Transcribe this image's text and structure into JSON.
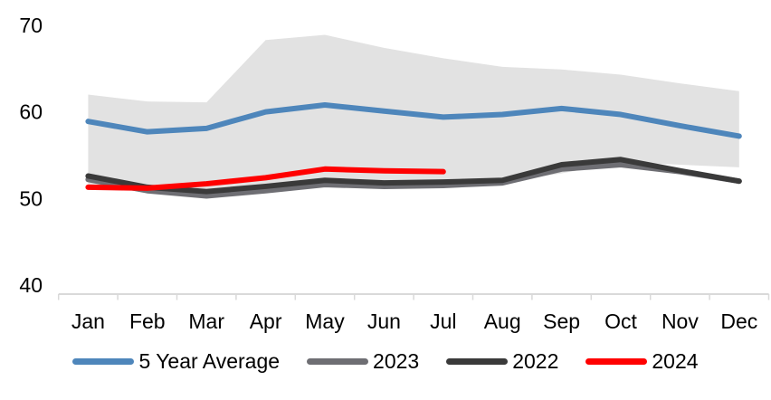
{
  "chart_data": {
    "type": "line",
    "title": "",
    "categories": [
      "Jan",
      "Feb",
      "Mar",
      "Apr",
      "May",
      "Jun",
      "Jul",
      "Aug",
      "Sep",
      "Oct",
      "Nov",
      "Dec"
    ],
    "y_ticks": [
      40,
      50,
      60,
      70
    ],
    "ylim": [
      40,
      70
    ],
    "grid": false,
    "legend_position": "bottom",
    "axis_color": "#D9D9D9",
    "text_color": "#000000",
    "band": {
      "color": "#E2E2E2",
      "top": [
        62.0,
        61.2,
        61.1,
        68.3,
        68.9,
        67.4,
        66.2,
        65.2,
        64.9,
        64.3,
        63.3,
        62.4
      ],
      "bottom": [
        51.5,
        50.7,
        50.3,
        50.9,
        51.6,
        51.3,
        51.5,
        51.9,
        52.9,
        54.2,
        53.9,
        53.6
      ]
    },
    "series": [
      {
        "name": "5 Year Average",
        "color": "#4E86BB",
        "values": [
          58.9,
          57.7,
          58.1,
          60.0,
          60.8,
          60.1,
          59.4,
          59.7,
          60.4,
          59.7,
          58.4,
          57.2
        ]
      },
      {
        "name": "2023",
        "color": "#6E6E73",
        "values": [
          52.2,
          50.9,
          50.3,
          50.9,
          51.6,
          51.4,
          51.5,
          51.8,
          53.4,
          53.9,
          53.1,
          52.0
        ]
      },
      {
        "name": "2022",
        "color": "#3A3A3A",
        "values": [
          52.6,
          51.3,
          50.8,
          51.4,
          52.1,
          51.8,
          51.9,
          52.1,
          53.9,
          54.5,
          53.2,
          52.0
        ]
      },
      {
        "name": "2024",
        "color": "#FF0000",
        "values": [
          51.3,
          51.2,
          51.7,
          52.4,
          53.4,
          53.2,
          53.1,
          null,
          null,
          null,
          null,
          null
        ]
      }
    ]
  }
}
